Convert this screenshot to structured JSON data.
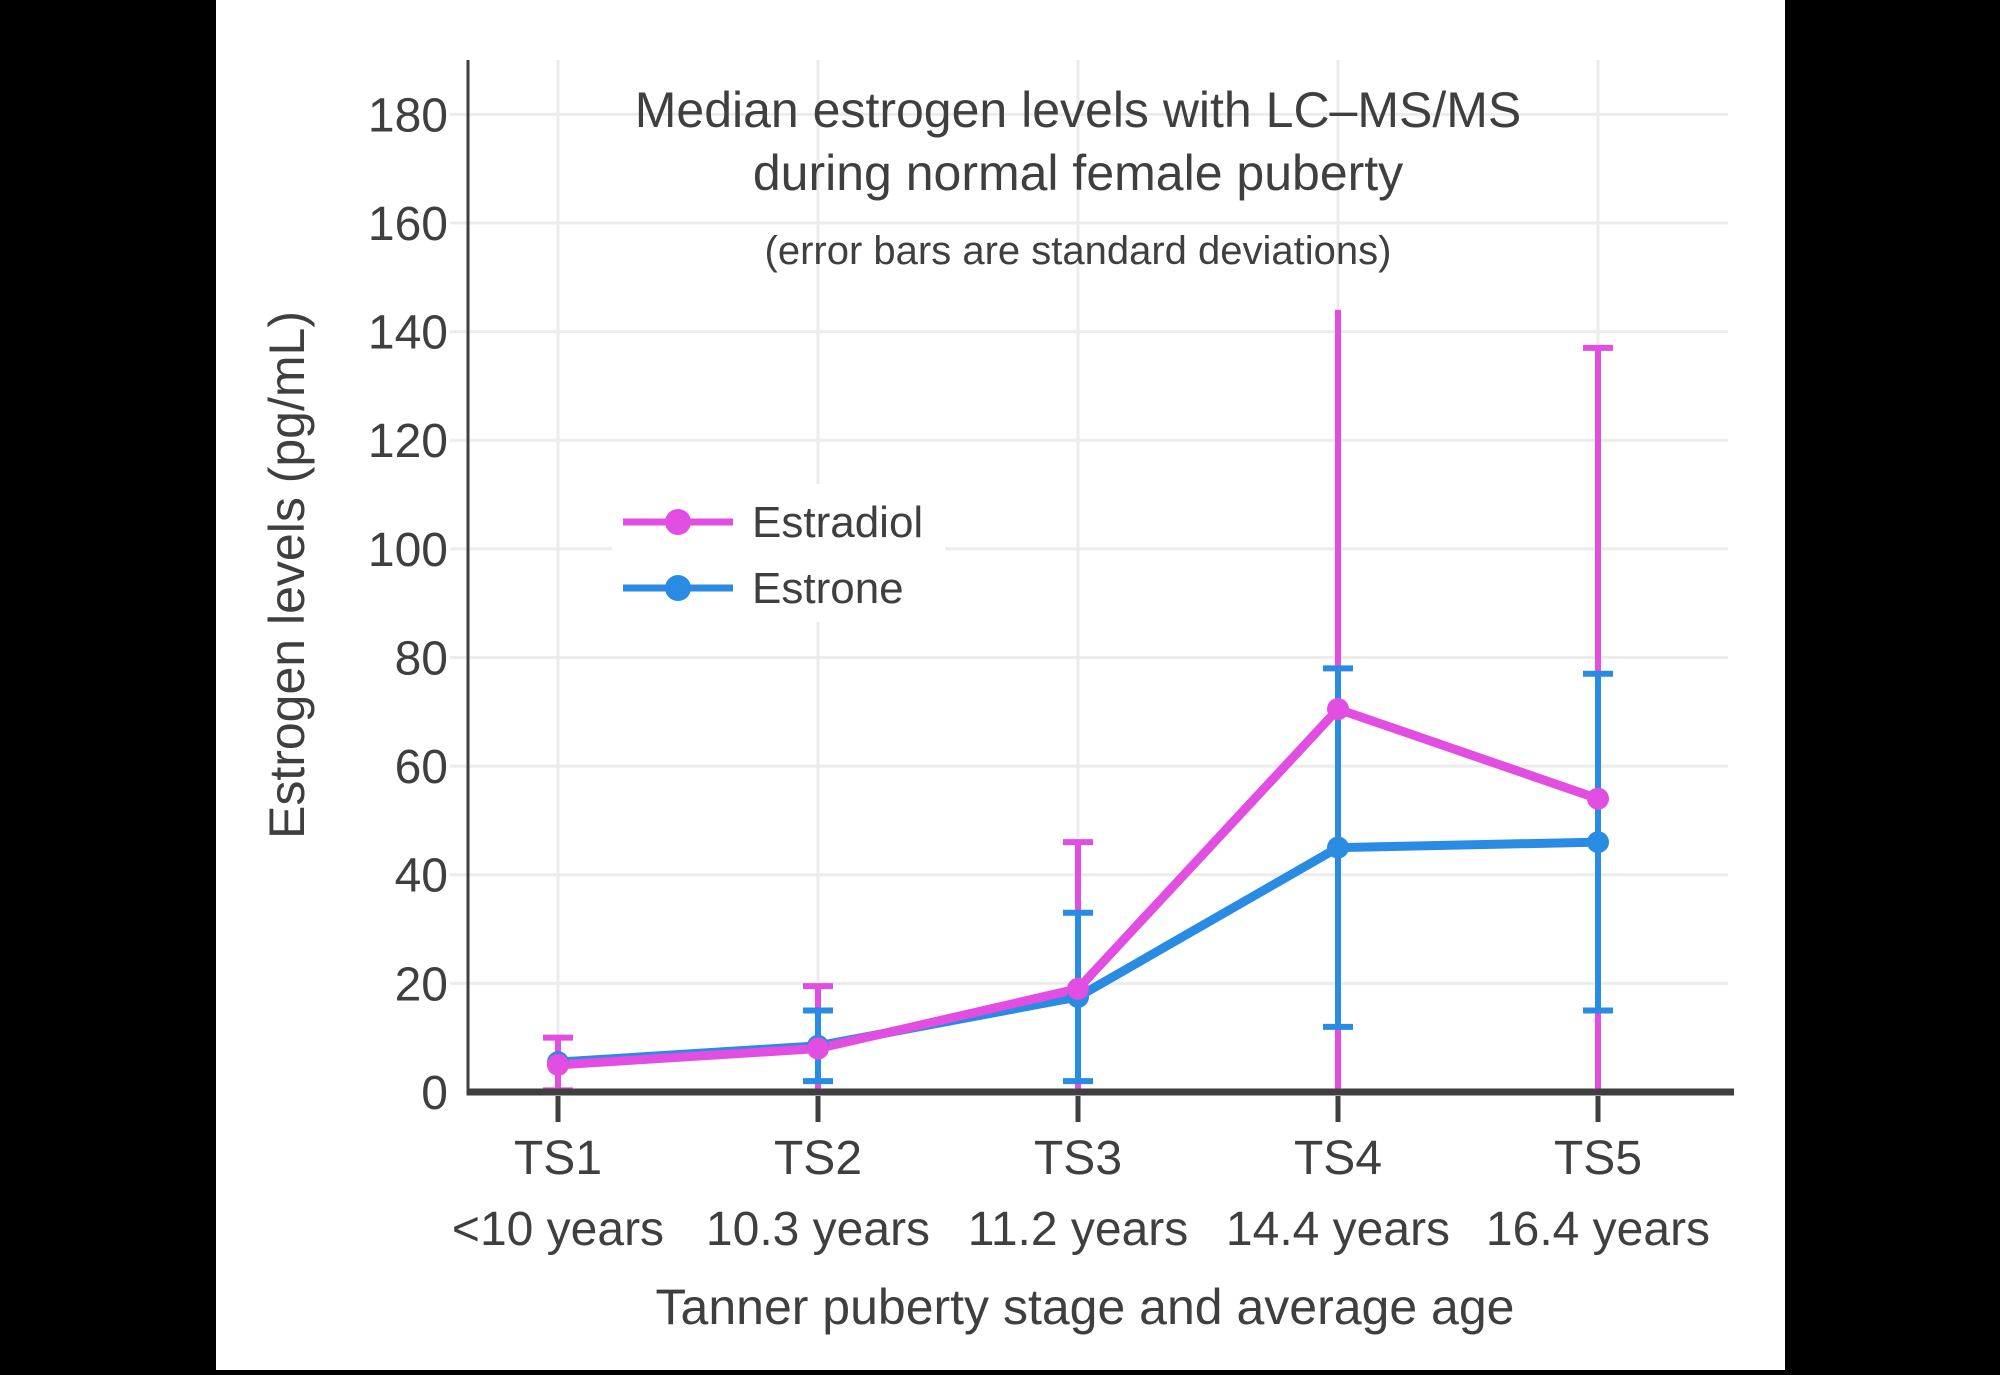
{
  "colors": {
    "letterbox": "#000000",
    "panel": "#FFFFFF",
    "grid": "#ECECEC",
    "axis": "#3F3F3F",
    "text": "#3F3F3F",
    "estradiol": "#E14EE1",
    "estrone": "#2A8BE2"
  },
  "chart_data": {
    "type": "line",
    "title_line1": "Median estrogen levels with LC–MS/MS",
    "title_line2": "during normal female puberty",
    "subtitle": "(error bars are standard deviations)",
    "xlabel": "Tanner puberty stage and average age",
    "ylabel": "Estrogen levels (pg/mL)",
    "categories": [
      "TS1",
      "TS2",
      "TS3",
      "TS4",
      "TS5"
    ],
    "category_sublabels": [
      "<10 years",
      "10.3 years",
      "11.2 years",
      "14.4 years",
      "16.4 years"
    ],
    "ylim": [
      0,
      190
    ],
    "yticks": [
      0,
      20,
      40,
      60,
      80,
      100,
      120,
      140,
      160,
      180
    ],
    "grid": true,
    "legend_position": "inside-upper-left",
    "error_bar_meaning": "standard deviations",
    "series": [
      {
        "name": "Estradiol",
        "color": "#E14EE1",
        "values": [
          5,
          8,
          19,
          70.5,
          54
        ],
        "error_upper": [
          10,
          19.5,
          46,
          144,
          137
        ],
        "error_lower": [
          0.3,
          0,
          0,
          0,
          0
        ],
        "cap_upper": [
          true,
          true,
          true,
          false,
          true
        ],
        "cap_lower": [
          true,
          false,
          false,
          false,
          false
        ]
      },
      {
        "name": "Estrone",
        "color": "#2A8BE2",
        "values": [
          5.5,
          8.5,
          17.5,
          45,
          46
        ],
        "error_upper": [
          null,
          15,
          33,
          78,
          77
        ],
        "error_lower": [
          null,
          2,
          2,
          12,
          15
        ],
        "cap_upper": [
          false,
          true,
          true,
          true,
          true
        ],
        "cap_lower": [
          false,
          true,
          true,
          true,
          true
        ]
      }
    ]
  },
  "legend": {
    "items": [
      {
        "label": "Estradiol"
      },
      {
        "label": "Estrone"
      }
    ]
  }
}
